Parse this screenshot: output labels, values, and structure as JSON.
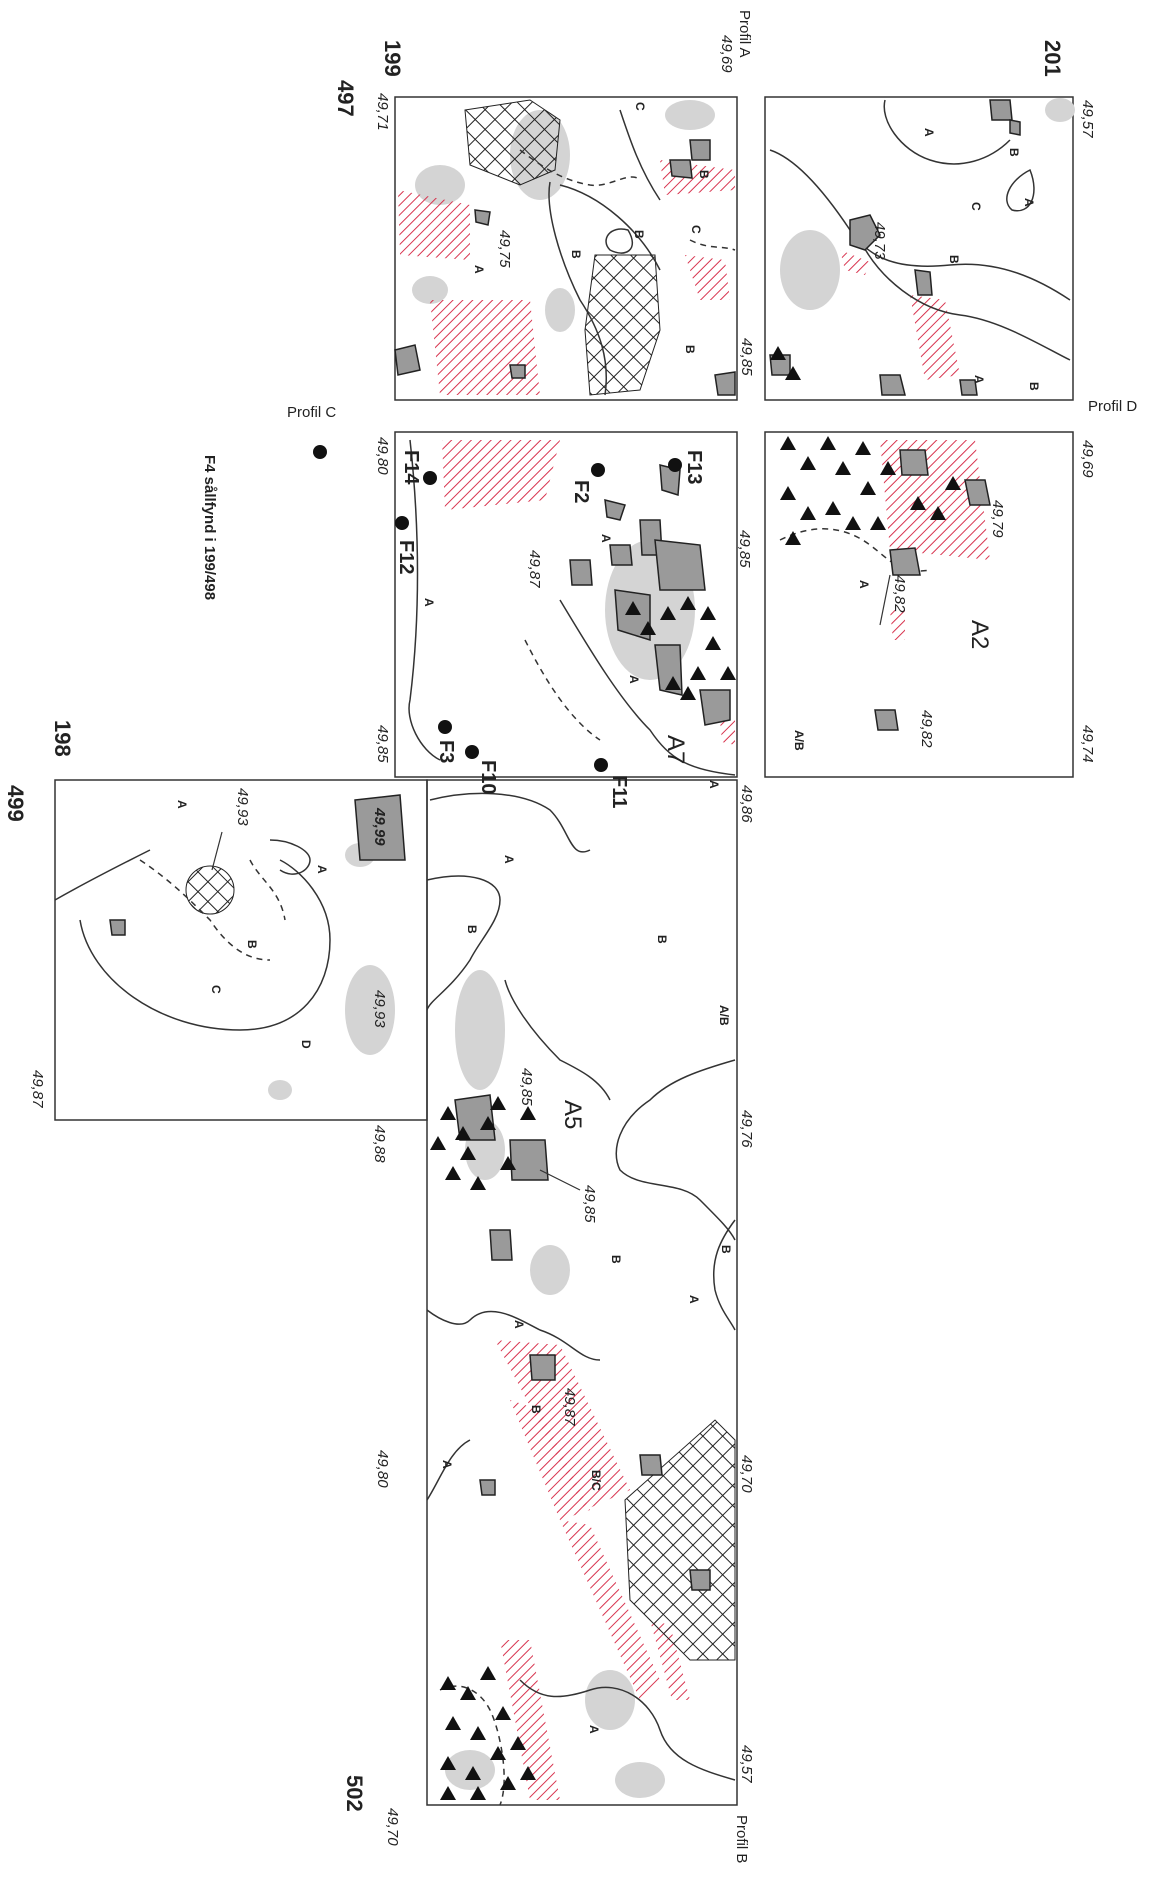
{
  "squares": {
    "s199": "199",
    "s201": "201",
    "s198": "198",
    "s497": "497",
    "s499": "499",
    "s502": "502"
  },
  "profiles": {
    "a": "Profil A",
    "b": "Profil B",
    "c": "Profil C",
    "d": "Profil D"
  },
  "caption": "F4 sållfynd i 199/498",
  "features": {
    "a2": "A2",
    "a5": "A5",
    "a7": "A7"
  },
  "finds": {
    "f2": "F2",
    "f3": "F3",
    "f10": "F10",
    "f11": "F11",
    "f12": "F12",
    "f13": "F13",
    "f14": "F14"
  },
  "layers": {
    "A": "A",
    "B": "B",
    "C": "C",
    "D": "D",
    "AB": "A/B",
    "BC": "B/C"
  },
  "elevations": {
    "e4969": "49,69",
    "e4971": "49,71",
    "e4957a": "49,57",
    "e4975": "49,75",
    "e4973": "49,73",
    "e4985a": "49,85",
    "e4969b": "49,69",
    "e4980a": "49,80",
    "e4985b": "49,85",
    "e4987a": "49,87",
    "e4979": "49,79",
    "e4982a": "49,82",
    "e4982b": "49,82",
    "e4974": "49,74",
    "e4985c": "49,85",
    "e4986": "49,86",
    "e4993a": "49,93",
    "e4999": "49,99",
    "e4993b": "49,93",
    "e4987b": "49,87",
    "e4988": "49,88",
    "e4976": "49,76",
    "e4985d": "49,85",
    "e4985e": "49,85",
    "e4987c": "49,87",
    "e4980b": "49,80",
    "e4970a": "49,70",
    "e4957b": "49,57",
    "e4970b": "49,70"
  },
  "colors": {
    "hatch": "#d8344f",
    "stone": "#9a9a9a",
    "light": "#d4d4d4",
    "line": "#333333"
  }
}
